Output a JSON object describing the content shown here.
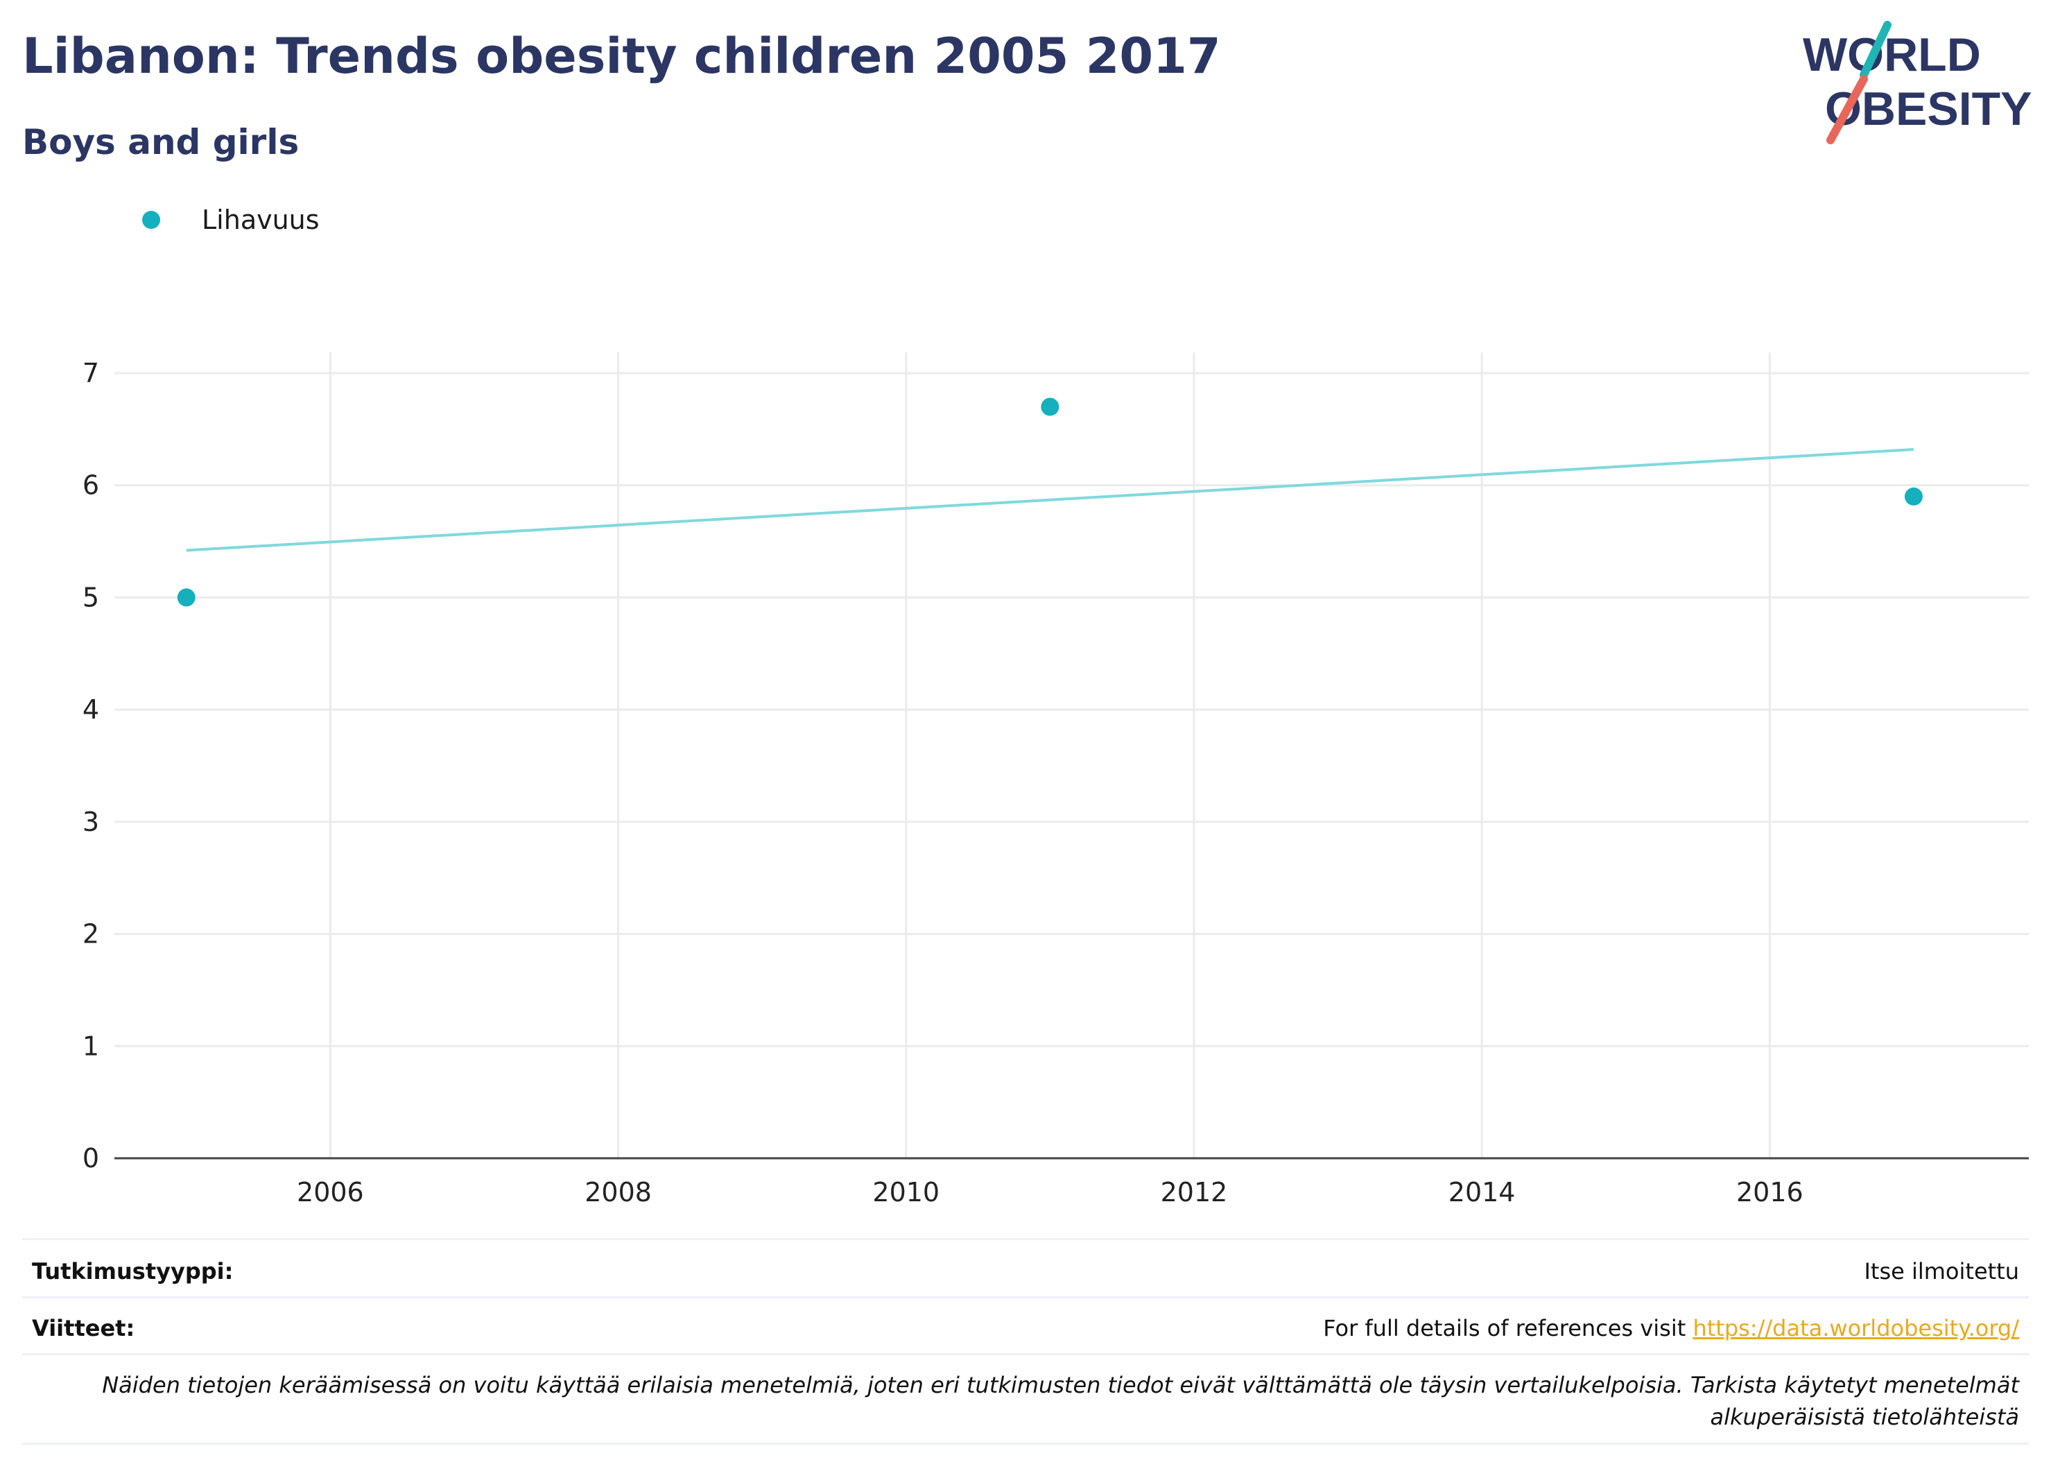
{
  "header": {
    "title": "Libanon: Trends obesity children 2005 2017",
    "subtitle": "Boys and girls"
  },
  "logo": {
    "line1": "WORLD",
    "line2": "OBESITY",
    "color": "#2b3664",
    "accent_teal": "#20b5b5",
    "accent_red": "#e8675a"
  },
  "legend": {
    "items": [
      {
        "label": "Lihavuus",
        "color": "#14b0bd"
      }
    ]
  },
  "chart_data": {
    "type": "scatter",
    "title": "",
    "xlabel": "",
    "ylabel": "",
    "xlim": [
      2004.5,
      2017.8
    ],
    "ylim": [
      0,
      7
    ],
    "x_ticks": [
      2006,
      2008,
      2010,
      2012,
      2014,
      2016
    ],
    "y_ticks": [
      0,
      1,
      2,
      3,
      4,
      5,
      6,
      7
    ],
    "grid": true,
    "series": [
      {
        "name": "Lihavuus",
        "color": "#14b0bd",
        "x": [
          2005,
          2011,
          2017
        ],
        "y": [
          5.0,
          6.7,
          5.9
        ]
      }
    ],
    "trendline": {
      "color": "#7fd9dd",
      "x": [
        2005,
        2017
      ],
      "y": [
        5.42,
        6.32
      ]
    }
  },
  "footer": {
    "study_type_label": "Tutkimustyyppi:",
    "study_type_value": "Itse ilmoitettu",
    "references_label": "Viitteet:",
    "references_text": "For full details of references visit ",
    "references_link": "https://data.worldobesity.org/",
    "note": "Näiden tietojen keräämisessä on voitu käyttää erilaisia menetelmiä, joten eri tutkimusten tiedot eivät välttämättä ole täysin vertailukelpoisia. Tarkista käytetyt menetelmät alkuperäisistä tietolähteistä"
  }
}
